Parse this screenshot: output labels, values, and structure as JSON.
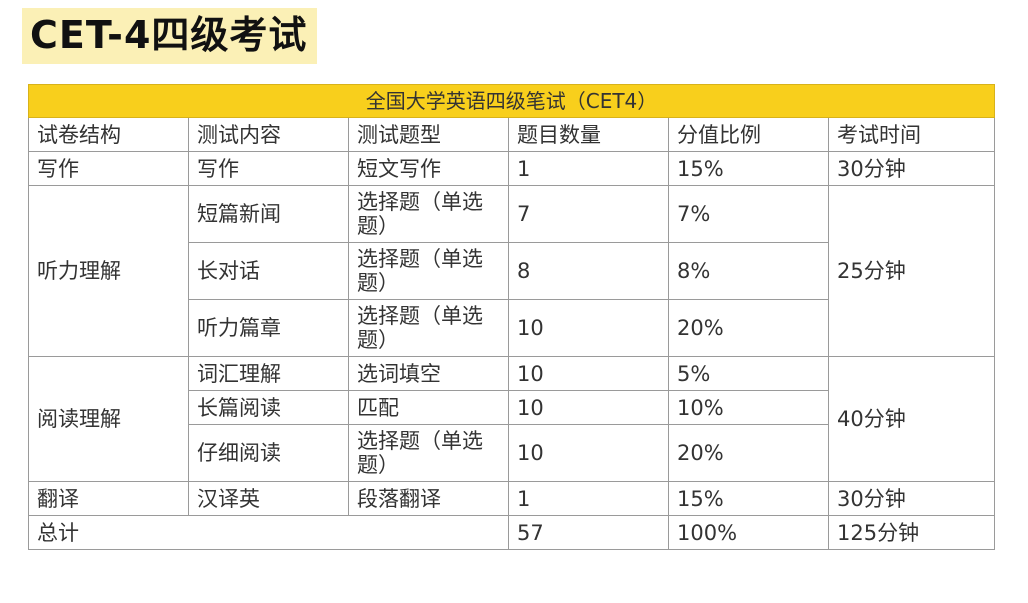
{
  "title": "CET-4四级考试",
  "table": {
    "banner": "全国大学英语四级笔试（CET4）",
    "headers": [
      "试卷结构",
      "测试内容",
      "测试题型",
      "题目数量",
      "分值比例",
      "考试时间"
    ],
    "rows": {
      "writing": {
        "section": "写作",
        "content": "写作",
        "type": "短文写作",
        "count": "1",
        "ratio": "15%",
        "time": "30分钟"
      },
      "listening": {
        "section": "听力理解",
        "time": "25分钟",
        "items": [
          {
            "content": "短篇新闻",
            "type": "选择题（单选题）",
            "count": "7",
            "ratio": "7%"
          },
          {
            "content": "长对话",
            "type": "选择题（单选题）",
            "count": "8",
            "ratio": "8%"
          },
          {
            "content": "听力篇章",
            "type": "选择题（单选题）",
            "count": "10",
            "ratio": "20%"
          }
        ]
      },
      "reading": {
        "section": "阅读理解",
        "time": "40分钟",
        "items": [
          {
            "content": "词汇理解",
            "type": "选词填空",
            "count": "10",
            "ratio": "5%"
          },
          {
            "content": "长篇阅读",
            "type": "匹配",
            "count": "10",
            "ratio": "10%"
          },
          {
            "content": "仔细阅读",
            "type": "选择题（单选题）",
            "count": "10",
            "ratio": "20%"
          }
        ]
      },
      "translation": {
        "section": "翻译",
        "content": "汉译英",
        "type": "段落翻译",
        "count": "1",
        "ratio": "15%",
        "time": "30分钟"
      },
      "total": {
        "label": "总计",
        "count": "57",
        "ratio": "100%",
        "time": "125分钟"
      }
    }
  }
}
